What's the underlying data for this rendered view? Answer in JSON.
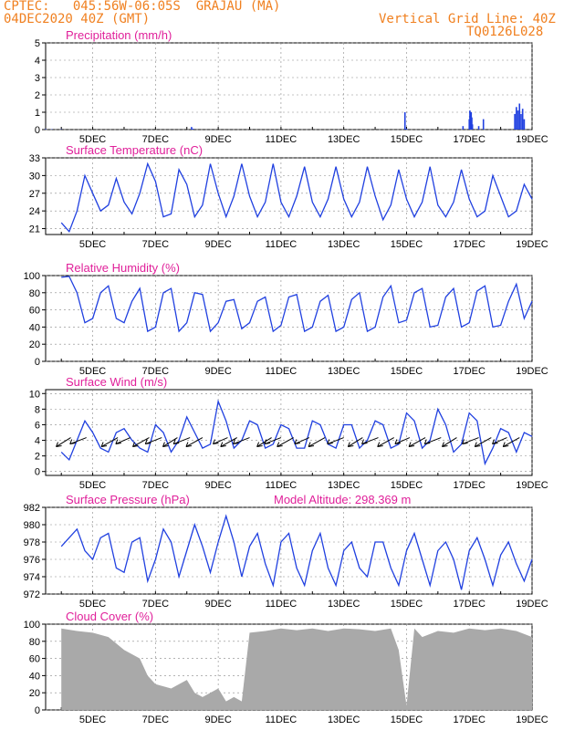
{
  "header": {
    "line1_left": "CPTEC:   045:56W-06:05S  GRAJAU (MA)",
    "line2_left": "04DEC2020 40Z (GMT)",
    "line1_right": "Vertical Grid Line: 40Z",
    "line2_right": "TQ0126L028"
  },
  "colors": {
    "header": "#f08020",
    "title": "#e0209a",
    "line": "#2040e0",
    "cloud": "#a9a9a9",
    "grid": "#888888",
    "wind_arrow": "#000000"
  },
  "x_ticks": [
    "5DEC",
    "7DEC",
    "9DEC",
    "11DEC",
    "13DEC",
    "15DEC",
    "17DEC",
    "19DEC"
  ],
  "chart_data": [
    {
      "type": "bar",
      "title": "Precipitation (mm/h)",
      "ylim": [
        0,
        5
      ],
      "yticks": [
        "0",
        "1",
        "2",
        "3",
        "4",
        "5"
      ],
      "grid": true,
      "x": [
        3.5,
        3.7,
        4.0,
        8.15,
        8.2,
        14.95,
        15.0,
        16.8,
        17.0,
        17.02,
        17.04,
        17.06,
        17.08,
        17.1,
        17.3,
        17.45,
        18.45,
        18.5,
        18.55,
        18.6,
        18.65,
        18.7,
        18.75
      ],
      "values": [
        0.03,
        0.02,
        0.02,
        0.15,
        0.05,
        1.0,
        0.05,
        0.2,
        0.6,
        1.1,
        0.8,
        1.0,
        0.7,
        0.3,
        0.2,
        0.6,
        0.9,
        1.3,
        1.1,
        1.5,
        0.9,
        1.2,
        0.6
      ]
    },
    {
      "type": "line",
      "title": "Surface Temperature (nC)",
      "ylim": [
        20,
        33
      ],
      "yticks": [
        "21",
        "24",
        "27",
        "30",
        "33"
      ],
      "grid": true,
      "series": [
        {
          "x": [
            4.0,
            4.25,
            4.5,
            4.75,
            5.0,
            5.25,
            5.5,
            5.75,
            6.0,
            6.25,
            6.5,
            6.75,
            7.0,
            7.25,
            7.5,
            7.75,
            8.0,
            8.25,
            8.5,
            8.75,
            9.0,
            9.25,
            9.5,
            9.75,
            10.0,
            10.25,
            10.5,
            10.75,
            11.0,
            11.25,
            11.5,
            11.75,
            12.0,
            12.25,
            12.5,
            12.75,
            13.0,
            13.25,
            13.5,
            13.75,
            14.0,
            14.25,
            14.5,
            14.75,
            15.0,
            15.25,
            15.5,
            15.75,
            16.0,
            16.25,
            16.5,
            16.75,
            17.0,
            17.25,
            17.5,
            17.75,
            18.0,
            18.25,
            18.5,
            18.75,
            19.0
          ],
          "values": [
            22,
            20.5,
            24,
            30,
            27,
            24,
            25,
            29.5,
            25.5,
            23.5,
            27,
            32,
            29,
            23,
            23.5,
            31,
            28.5,
            23,
            25,
            32,
            27,
            23,
            26.5,
            32,
            26.5,
            23,
            25.5,
            32,
            25.5,
            23,
            26.5,
            31.5,
            25.5,
            23,
            26,
            31.5,
            26,
            23,
            25.5,
            31.5,
            26.5,
            22.5,
            25,
            31,
            26,
            23,
            25.5,
            31.5,
            25,
            23,
            25.5,
            31,
            26,
            23,
            24,
            30,
            26.5,
            23,
            24,
            28.5,
            26
          ]
        }
      ]
    },
    {
      "type": "line",
      "title": "Relative Humidity (%)",
      "ylim": [
        0,
        100
      ],
      "yticks": [
        "0",
        "20",
        "40",
        "60",
        "80",
        "100"
      ],
      "grid": true,
      "series": [
        {
          "x": [
            4.0,
            4.25,
            4.5,
            4.75,
            5.0,
            5.25,
            5.5,
            5.75,
            6.0,
            6.25,
            6.5,
            6.75,
            7.0,
            7.25,
            7.5,
            7.75,
            8.0,
            8.25,
            8.5,
            8.75,
            9.0,
            9.25,
            9.5,
            9.75,
            10.0,
            10.25,
            10.5,
            10.75,
            11.0,
            11.25,
            11.5,
            11.75,
            12.0,
            12.25,
            12.5,
            12.75,
            13.0,
            13.25,
            13.5,
            13.75,
            14.0,
            14.25,
            14.5,
            14.75,
            15.0,
            15.25,
            15.5,
            15.75,
            16.0,
            16.25,
            16.5,
            16.75,
            17.0,
            17.25,
            17.5,
            17.75,
            18.0,
            18.25,
            18.5,
            18.75,
            19.0
          ],
          "values": [
            98,
            99,
            80,
            45,
            50,
            80,
            88,
            50,
            45,
            70,
            85,
            35,
            40,
            80,
            85,
            35,
            45,
            80,
            78,
            35,
            45,
            70,
            72,
            38,
            45,
            70,
            75,
            35,
            42,
            75,
            78,
            35,
            40,
            70,
            77,
            35,
            40,
            72,
            80,
            35,
            40,
            75,
            88,
            45,
            48,
            80,
            85,
            40,
            42,
            75,
            85,
            40,
            45,
            82,
            88,
            40,
            42,
            70,
            90,
            50,
            70
          ]
        }
      ]
    },
    {
      "type": "line",
      "title": "Surface Wind (m/s)",
      "ylim": [
        -0.5,
        10.5
      ],
      "yticks": [
        "0",
        "2",
        "4",
        "6",
        "8",
        "10"
      ],
      "grid": true,
      "series": [
        {
          "x": [
            4.0,
            4.25,
            4.5,
            4.75,
            5.0,
            5.25,
            5.5,
            5.75,
            6.0,
            6.25,
            6.5,
            6.75,
            7.0,
            7.25,
            7.5,
            7.75,
            8.0,
            8.25,
            8.5,
            8.75,
            9.0,
            9.25,
            9.5,
            9.75,
            10.0,
            10.25,
            10.5,
            10.75,
            11.0,
            11.25,
            11.5,
            11.75,
            12.0,
            12.25,
            12.5,
            12.75,
            13.0,
            13.25,
            13.5,
            13.75,
            14.0,
            14.25,
            14.5,
            14.75,
            15.0,
            15.25,
            15.5,
            15.75,
            16.0,
            16.25,
            16.5,
            16.75,
            17.0,
            17.25,
            17.5,
            17.75,
            18.0,
            18.25,
            18.5,
            18.75,
            19.0
          ],
          "values": [
            2.5,
            1.5,
            4,
            6.5,
            5,
            3,
            2.5,
            5,
            5.5,
            4,
            3,
            2.5,
            6,
            5,
            2.5,
            4,
            7,
            5,
            3,
            3.5,
            9,
            6.5,
            3,
            4,
            6.5,
            6,
            3,
            3.5,
            6,
            5.5,
            3,
            3,
            6.5,
            6,
            3.5,
            3,
            6,
            6,
            3,
            4,
            6.5,
            6,
            3,
            3.5,
            7.5,
            6.5,
            3,
            4,
            8,
            6,
            2.5,
            3.5,
            7.5,
            6.5,
            1,
            3,
            5.5,
            5,
            2.5,
            5,
            4.5
          ]
        }
      ],
      "arrows_x": [
        4.3,
        4.8,
        5.8,
        6.2,
        6.8,
        7.2,
        7.7,
        8.1,
        8.5,
        9.3,
        9.6,
        10.0,
        10.7,
        11.0,
        11.4,
        11.9,
        12.4,
        13.0,
        13.6,
        14.1,
        14.6,
        15.1,
        15.6,
        16.1,
        16.6,
        17.3,
        17.7,
        18.2,
        18.6
      ]
    },
    {
      "type": "line",
      "title": "Surface Pressure (hPa)",
      "annotation": "Model Altitude: 298.369 m",
      "ylim": [
        972,
        982
      ],
      "yticks": [
        "972",
        "974",
        "976",
        "978",
        "980",
        "982"
      ],
      "grid": true,
      "series": [
        {
          "x": [
            4.0,
            4.25,
            4.5,
            4.75,
            5.0,
            5.25,
            5.5,
            5.75,
            6.0,
            6.25,
            6.5,
            6.75,
            7.0,
            7.25,
            7.5,
            7.75,
            8.0,
            8.25,
            8.5,
            8.75,
            9.0,
            9.25,
            9.5,
            9.75,
            10.0,
            10.25,
            10.5,
            10.75,
            11.0,
            11.25,
            11.5,
            11.75,
            12.0,
            12.25,
            12.5,
            12.75,
            13.0,
            13.25,
            13.5,
            13.75,
            14.0,
            14.25,
            14.5,
            14.75,
            15.0,
            15.25,
            15.5,
            15.75,
            16.0,
            16.25,
            16.5,
            16.75,
            17.0,
            17.25,
            17.5,
            17.75,
            18.0,
            18.25,
            18.5,
            18.75,
            19.0
          ],
          "values": [
            977.5,
            978.5,
            979.5,
            977,
            976,
            978.5,
            979,
            975,
            974.5,
            978,
            978.5,
            973.5,
            976,
            979.5,
            978,
            974,
            977,
            980,
            977.5,
            974.5,
            978,
            981,
            978,
            974,
            977.5,
            979,
            975.5,
            973,
            978,
            979,
            975,
            973,
            977,
            979,
            975,
            973,
            977,
            978,
            975,
            974,
            978,
            978,
            975,
            973,
            977,
            979,
            976,
            973,
            977,
            978,
            976,
            972.5,
            977,
            978.5,
            976,
            973,
            976.5,
            978,
            975.5,
            973.5,
            976
          ]
        }
      ]
    },
    {
      "type": "area",
      "title": "Cloud Cover (%)",
      "ylim": [
        0,
        100
      ],
      "yticks": [
        "0",
        "20",
        "40",
        "60",
        "80",
        "100"
      ],
      "grid": true,
      "x": [
        4.0,
        4.5,
        5.0,
        5.5,
        6.0,
        6.5,
        6.75,
        7.0,
        7.5,
        8.0,
        8.25,
        8.5,
        9.0,
        9.25,
        9.5,
        9.75,
        10.0,
        10.5,
        11.0,
        11.5,
        12.0,
        12.5,
        13.0,
        13.5,
        14.0,
        14.5,
        14.75,
        15.0,
        15.25,
        15.5,
        16.0,
        16.5,
        17.0,
        17.5,
        18.0,
        18.5,
        19.0
      ],
      "values": [
        95,
        92,
        90,
        85,
        70,
        60,
        40,
        30,
        25,
        35,
        20,
        15,
        25,
        10,
        15,
        10,
        90,
        92,
        95,
        93,
        95,
        92,
        95,
        94,
        92,
        95,
        70,
        5,
        95,
        85,
        92,
        90,
        95,
        93,
        95,
        92,
        85
      ]
    }
  ]
}
